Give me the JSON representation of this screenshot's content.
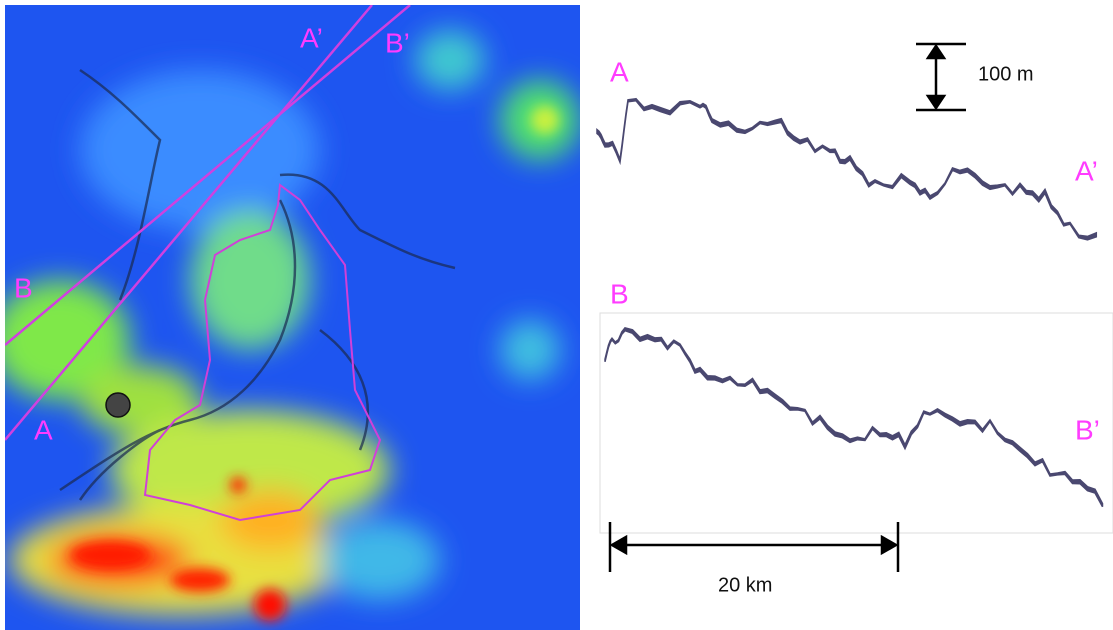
{
  "map": {
    "labels": [
      "A’",
      "B’",
      "B",
      "A"
    ]
  },
  "profiles": [
    {
      "start": "A",
      "end": "A’"
    },
    {
      "start": "B",
      "end": "B’"
    }
  ],
  "scale_bars": {
    "vertical": "100 m",
    "horizontal": "20 km"
  }
}
